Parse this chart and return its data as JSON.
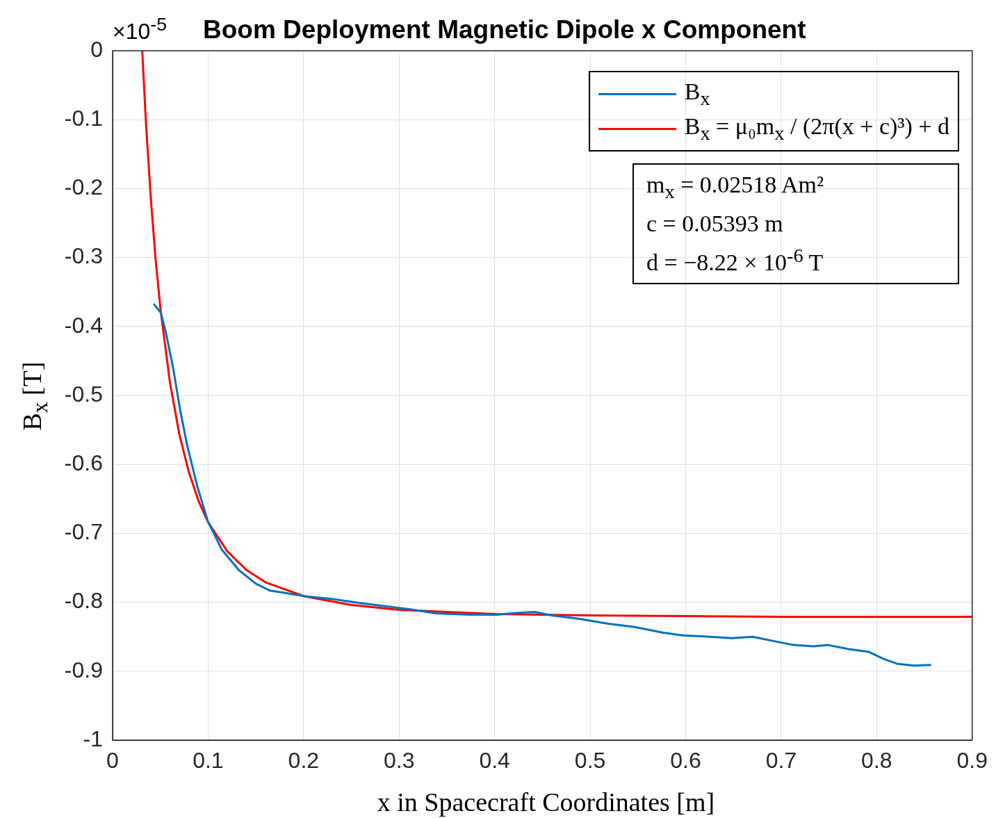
{
  "chart_data": {
    "type": "line",
    "title": "Boom Deployment Magnetic Dipole x Component",
    "xlabel": "x in Spacecraft Coordinates [m]",
    "ylabel": "B$_{x}$ [T]",
    "xlim": [
      0,
      0.9
    ],
    "xticks": [
      0,
      0.1,
      0.2,
      0.3,
      0.4,
      0.5,
      0.6,
      0.7,
      0.8,
      0.9
    ],
    "ylim": [
      -1,
      0
    ],
    "yticks": [
      -1,
      -0.9,
      -0.8,
      -0.7,
      -0.6,
      -0.5,
      -0.4,
      -0.3,
      -0.2,
      -0.1,
      0
    ],
    "grid": true,
    "legend": "top right",
    "marker": "none",
    "annotations": [
      "×10$^{-5}$",
      "m$_{x}$ = 0.02518 Am²",
      "c = 0.05393 m",
      "d = −8.22 × 10$^{-6}$ T"
    ],
    "series": [
      {
        "name": "B$_{x}$",
        "color": "#0072bd",
        "x": [
          0.043,
          0.0505,
          0.056,
          0.0635,
          0.0707,
          0.078,
          0.0887,
          0.0996,
          0.114,
          0.132,
          0.15,
          0.1645,
          0.179,
          0.2006,
          0.229,
          0.258,
          0.287,
          0.316,
          0.338,
          0.374,
          0.4026,
          0.417,
          0.442,
          0.46,
          0.489,
          0.518,
          0.547,
          0.576,
          0.597,
          0.626,
          0.648,
          0.67,
          0.691,
          0.713,
          0.734,
          0.749,
          0.771,
          0.792,
          0.807,
          0.821,
          0.839,
          0.857
        ],
        "values": [
          -0.367,
          -0.38,
          -0.41,
          -0.461,
          -0.521,
          -0.572,
          -0.632,
          -0.682,
          -0.723,
          -0.753,
          -0.773,
          -0.783,
          -0.786,
          -0.791,
          -0.795,
          -0.801,
          -0.806,
          -0.811,
          -0.816,
          -0.818,
          -0.818,
          -0.816,
          -0.814,
          -0.819,
          -0.824,
          -0.831,
          -0.836,
          -0.844,
          -0.848,
          -0.85,
          -0.852,
          -0.85,
          -0.856,
          -0.862,
          -0.864,
          -0.862,
          -0.868,
          -0.872,
          -0.882,
          -0.889,
          -0.892,
          -0.891
        ]
      },
      {
        "name": "B$_{x}$ = μ₀m$_{x}$ / (2π(x + c)³) + d",
        "color": "#ff0000",
        "x": [
          0.031,
          0.035,
          0.04,
          0.045,
          0.05,
          0.06,
          0.07,
          0.08,
          0.09,
          0.1,
          0.12,
          0.14,
          0.16,
          0.2,
          0.25,
          0.3,
          0.4,
          0.5,
          0.6,
          0.7,
          0.9
        ],
        "values": [
          0,
          -0.106,
          -0.214,
          -0.302,
          -0.373,
          -0.481,
          -0.557,
          -0.612,
          -0.653,
          -0.684,
          -0.726,
          -0.753,
          -0.771,
          -0.791,
          -0.804,
          -0.811,
          -0.817,
          -0.819,
          -0.82,
          -0.821,
          -0.821
        ]
      }
    ]
  }
}
